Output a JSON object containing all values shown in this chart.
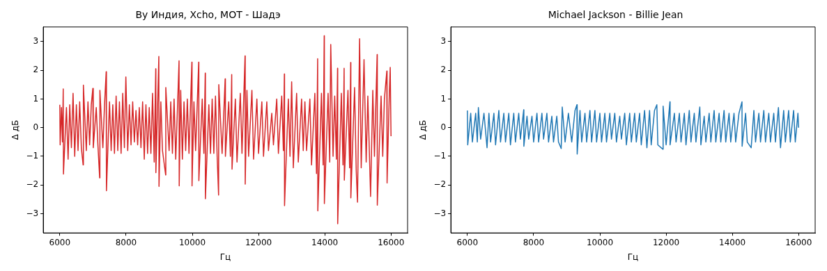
{
  "chart_data": [
    {
      "type": "line",
      "title": "By Индия, Xcho, MOT - Шадэ",
      "xlabel": "Гц",
      "ylabel": "Δ дБ",
      "xlim": [
        5500,
        16500
      ],
      "xticks": [
        6000,
        8000,
        10000,
        12000,
        14000,
        16000
      ],
      "ylim": [
        -3.67,
        3.51
      ],
      "yticks": [
        {
          "value": -3,
          "label": "−3"
        },
        {
          "value": -2,
          "label": "−2"
        },
        {
          "value": -1,
          "label": "−1"
        },
        0,
        1,
        2,
        3
      ],
      "series": [
        {
          "color": "#d62728",
          "x": [
            6000,
            6010,
            6050,
            6080,
            6103,
            6110,
            6200,
            6250,
            6300,
            6350,
            6400,
            6450,
            6500,
            6550,
            6600,
            6650,
            6704,
            6712,
            6800,
            6850,
            6900,
            6950,
            6997,
            7010,
            7100,
            7150,
            7203,
            7210,
            7300,
            7350,
            7400,
            7408,
            7500,
            7550,
            7600,
            7650,
            7700,
            7750,
            7800,
            7850,
            7900,
            7950,
            7994,
            8050,
            8100,
            8150,
            8200,
            8250,
            8300,
            8350,
            8400,
            8450,
            8500,
            8550,
            8600,
            8650,
            8700,
            8750,
            8800,
            8850,
            8896,
            8900,
            8990,
            8995,
            9050,
            9100,
            9196,
            9200,
            9300,
            9350,
            9400,
            9450,
            9500,
            9600,
            9605,
            9650,
            9700,
            9750,
            9800,
            9850,
            9900,
            9987,
            9992,
            10050,
            10100,
            10193,
            10198,
            10300,
            10350,
            10391,
            10396,
            10500,
            10550,
            10600,
            10650,
            10700,
            10750,
            10794,
            10800,
            10900,
            10992,
            11000,
            11100,
            11150,
            11190,
            11200,
            11300,
            11350,
            11450,
            11500,
            11593,
            11598,
            11650,
            11700,
            11800,
            11850,
            11950,
            12000,
            12100,
            12150,
            12250,
            12300,
            12400,
            12450,
            12550,
            12600,
            12700,
            12750,
            12780,
            12785,
            12900,
            12950,
            13000,
            13050,
            13150,
            13200,
            13300,
            13350,
            13400,
            13450,
            13550,
            13600,
            13700,
            13750,
            13785,
            13790,
            13900,
            13950,
            13983,
            13988,
            14100,
            14150,
            14180,
            14250,
            14300,
            14350,
            14386,
            14390,
            14500,
            14550,
            14584,
            14590,
            14700,
            14750,
            14782,
            14787,
            14900,
            14950,
            14988,
            15051,
            15100,
            15185,
            15250,
            15300,
            15383,
            15450,
            15500,
            15581,
            15586,
            15700,
            15750,
            15800,
            15873,
            15881,
            15950,
            15976,
            16000
          ],
          "values": [
            0.8,
            -0.6,
            0.7,
            -0.5,
            1.35,
            -1.62,
            0.7,
            -1.1,
            0.8,
            -0.7,
            1.2,
            -1.0,
            0.8,
            -0.8,
            0.9,
            -0.7,
            -1.3,
            1.48,
            -0.8,
            0.9,
            -0.6,
            0.8,
            1.37,
            -0.7,
            0.7,
            -0.6,
            -1.75,
            1.3,
            -0.7,
            0.8,
            1.95,
            -2.2,
            0.9,
            -0.8,
            0.8,
            -0.9,
            1.1,
            -0.8,
            0.9,
            -0.9,
            1.2,
            -0.7,
            1.77,
            -0.8,
            0.8,
            -0.6,
            0.9,
            -0.5,
            0.6,
            -0.6,
            0.7,
            -0.7,
            0.9,
            -1.1,
            0.8,
            -0.9,
            0.7,
            -0.9,
            1.2,
            -1.2,
            2.05,
            -1.57,
            2.48,
            -2.05,
            0.9,
            -0.8,
            -1.65,
            1.4,
            -0.8,
            0.9,
            -0.9,
            1.0,
            -1.1,
            2.33,
            -2.03,
            1.3,
            -1.1,
            0.9,
            -0.8,
            1.0,
            -0.9,
            2.28,
            -2.03,
            0.9,
            -0.8,
            2.28,
            -1.85,
            1.0,
            -0.9,
            1.9,
            -2.48,
            0.8,
            -0.9,
            1.0,
            -0.9,
            1.1,
            -1.0,
            -2.35,
            1.5,
            -0.9,
            1.7,
            -1.0,
            0.9,
            -1.0,
            1.85,
            -1.45,
            1.0,
            -1.2,
            1.2,
            -0.9,
            2.5,
            -1.97,
            1.3,
            -1.0,
            1.3,
            -1.1,
            1.0,
            -0.9,
            0.9,
            -1.0,
            0.9,
            -0.8,
            0.5,
            -0.6,
            1.0,
            -0.9,
            1.1,
            -0.8,
            1.87,
            -2.72,
            1.0,
            -1.0,
            1.6,
            -1.4,
            1.2,
            -1.2,
            1.0,
            -0.8,
            0.9,
            -0.8,
            1.0,
            -1.3,
            1.2,
            -1.6,
            2.4,
            -2.9,
            1.2,
            -1.3,
            3.2,
            -2.65,
            1.2,
            -1.2,
            2.9,
            -1.0,
            1.1,
            -1.1,
            2.07,
            -3.35,
            1.2,
            -1.3,
            2.07,
            -1.83,
            1.3,
            -1.4,
            2.27,
            -2.45,
            1.4,
            -1.5,
            -2.6,
            3.1,
            -1.4,
            2.37,
            -1.2,
            1.1,
            -2.4,
            1.3,
            -1.0,
            2.55,
            -2.7,
            1.1,
            -1.0,
            1.0,
            1.97,
            -1.93,
            1.2,
            2.1,
            -0.3
          ]
        }
      ]
    },
    {
      "type": "line",
      "title": "Michael Jackson - Billie Jean",
      "xlabel": "Гц",
      "ylabel": "Δ дБ",
      "xlim": [
        5500,
        16500
      ],
      "xticks": [
        6000,
        8000,
        10000,
        12000,
        14000,
        16000
      ],
      "ylim": [
        -3.67,
        3.51
      ],
      "yticks": [
        {
          "value": -3,
          "label": "−3"
        },
        {
          "value": -2,
          "label": "−2"
        },
        {
          "value": -1,
          "label": "−1"
        },
        0,
        1,
        2,
        3
      ],
      "series": [
        {
          "color": "#1f77b4",
          "x": [
            6000,
            6010,
            6100,
            6150,
            6250,
            6300,
            6332,
            6400,
            6500,
            6593,
            6650,
            6700,
            6800,
            6850,
            6950,
            7000,
            7100,
            7150,
            7250,
            7300,
            7400,
            7450,
            7550,
            7600,
            7700,
            7705,
            7800,
            7850,
            7950,
            8000,
            8100,
            8150,
            8250,
            8300,
            8400,
            8450,
            8550,
            8600,
            8700,
            8750,
            8832,
            8864,
            8950,
            9050,
            9150,
            9250,
            9307,
            9315,
            9400,
            9450,
            9550,
            9600,
            9700,
            9750,
            9850,
            9900,
            10000,
            10050,
            10150,
            10200,
            10300,
            10350,
            10450,
            10500,
            10600,
            10650,
            10750,
            10800,
            10900,
            10950,
            11050,
            11100,
            11200,
            11250,
            11350,
            11420,
            11500,
            11550,
            11650,
            11720,
            11750,
            11900,
            11910,
            12000,
            12115,
            12120,
            12250,
            12300,
            12400,
            12450,
            12550,
            12600,
            12700,
            12750,
            12850,
            12900,
            13017,
            13050,
            13150,
            13200,
            13300,
            13350,
            13450,
            13500,
            13600,
            13650,
            13750,
            13800,
            13900,
            13950,
            14050,
            14100,
            14200,
            14291,
            14295,
            14400,
            14450,
            14568,
            14650,
            14700,
            14800,
            14850,
            14950,
            15000,
            15100,
            15150,
            15250,
            15300,
            15391,
            15454,
            15550,
            15600,
            15700,
            15750,
            15850,
            15900,
            15980,
            16000
          ],
          "values": [
            0.6,
            -0.6,
            0.5,
            -0.5,
            0.5,
            -0.5,
            0.7,
            -0.4,
            0.5,
            -0.7,
            0.5,
            -0.5,
            0.5,
            -0.6,
            0.6,
            -0.5,
            0.5,
            -0.5,
            0.5,
            -0.6,
            0.5,
            -0.5,
            0.5,
            -0.4,
            0.62,
            -0.65,
            0.4,
            -0.4,
            0.4,
            -0.5,
            0.5,
            -0.5,
            0.5,
            -0.4,
            0.5,
            -0.5,
            0.4,
            -0.5,
            0.4,
            -0.5,
            -0.73,
            0.72,
            -0.5,
            0.5,
            -0.5,
            0.6,
            0.8,
            -0.92,
            0.6,
            -0.5,
            0.5,
            -0.5,
            0.6,
            -0.5,
            0.6,
            -0.5,
            0.5,
            -0.5,
            0.5,
            -0.5,
            0.5,
            -0.4,
            0.5,
            -0.5,
            0.4,
            -0.4,
            0.5,
            -0.6,
            0.5,
            -0.5,
            0.5,
            -0.5,
            0.5,
            -0.6,
            0.6,
            -0.7,
            0.6,
            -0.6,
            0.6,
            0.8,
            -0.6,
            -0.75,
            0.75,
            -0.6,
            0.9,
            -0.6,
            0.5,
            -0.5,
            0.5,
            -0.5,
            0.5,
            -0.6,
            0.6,
            -0.5,
            0.5,
            -0.5,
            0.72,
            -0.6,
            0.4,
            -0.5,
            0.5,
            -0.5,
            0.6,
            -0.5,
            0.5,
            -0.5,
            0.6,
            -0.5,
            0.5,
            -0.5,
            0.5,
            -0.5,
            0.5,
            0.9,
            -0.65,
            0.5,
            -0.5,
            -0.7,
            0.6,
            -0.5,
            0.5,
            -0.5,
            0.6,
            -0.5,
            0.5,
            -0.5,
            0.5,
            -0.5,
            0.7,
            -0.7,
            0.6,
            -0.5,
            0.6,
            -0.5,
            0.6,
            -0.5,
            0.5,
            0.0
          ]
        }
      ]
    }
  ]
}
